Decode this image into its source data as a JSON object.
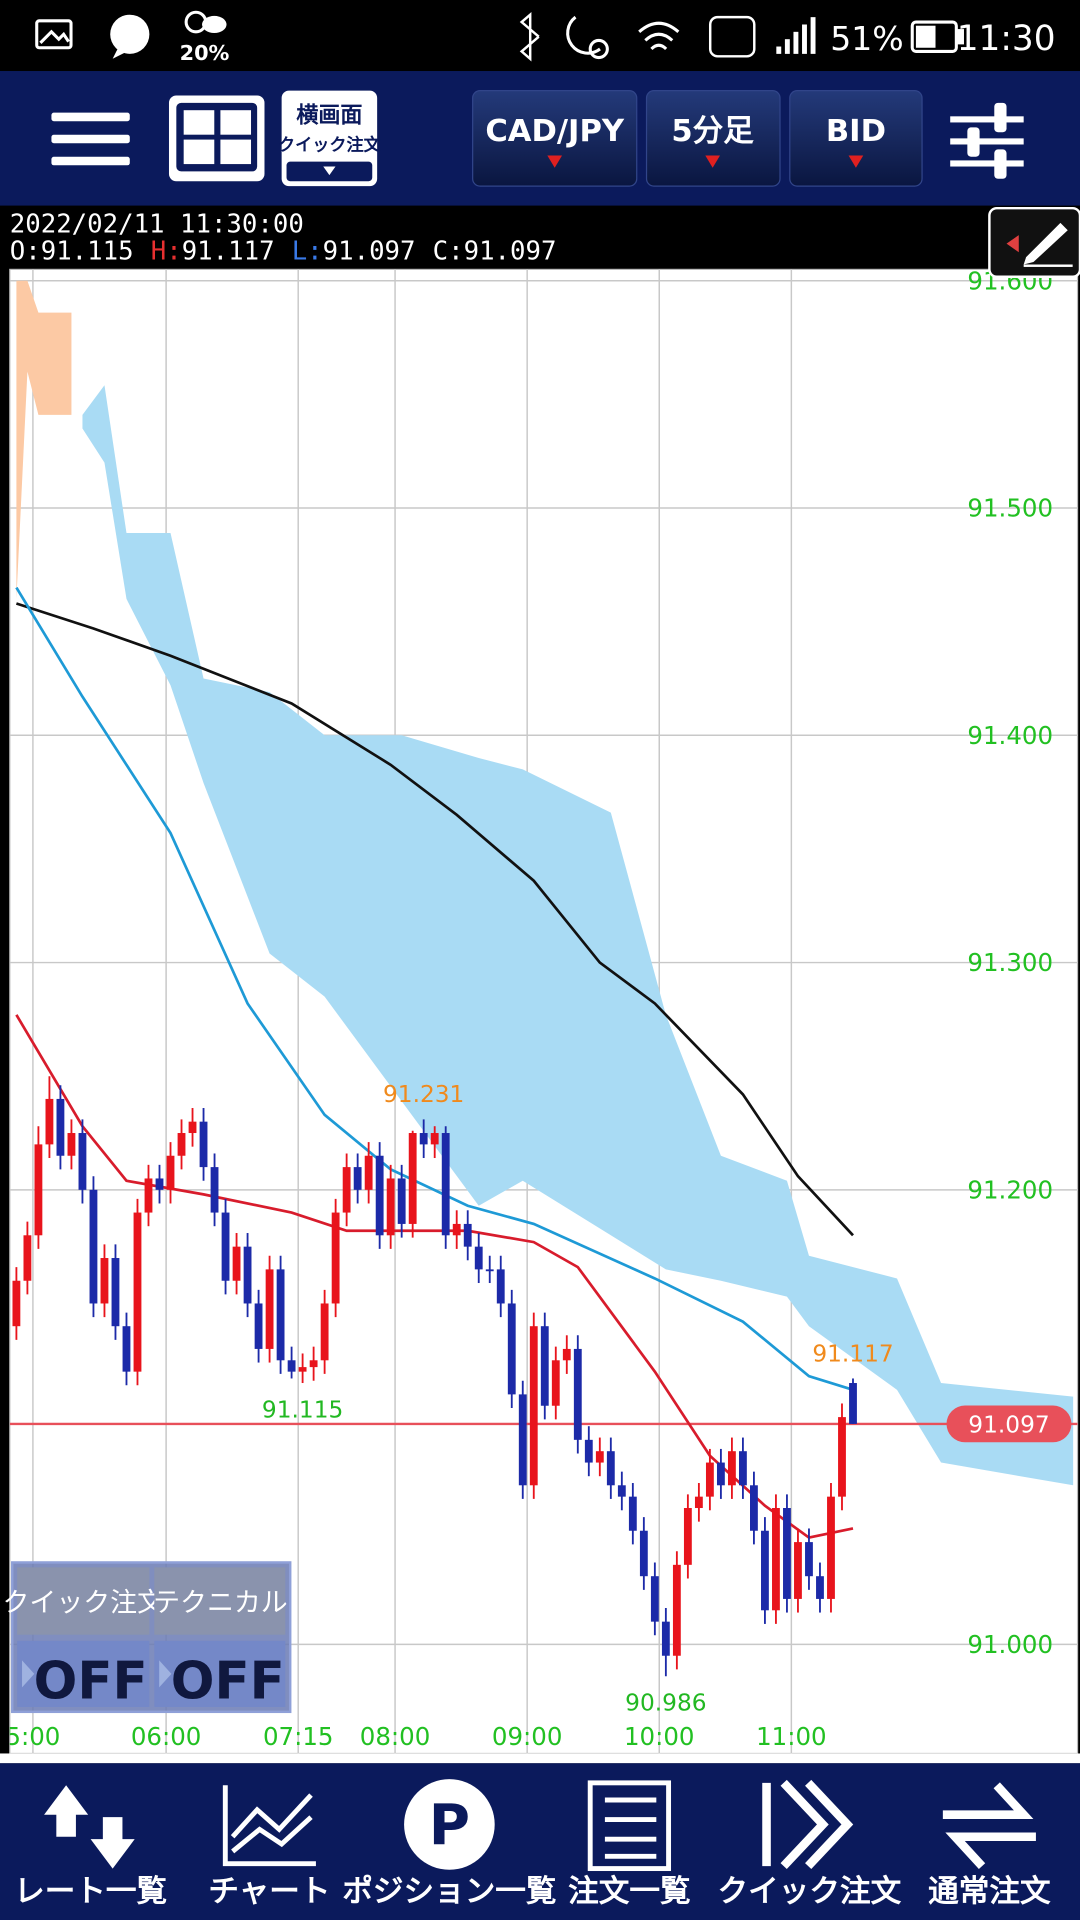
{
  "status_bar": {
    "weather": "20%",
    "battery": "51%",
    "time": "11:30"
  },
  "toolbar": {
    "landscape_line1": "横画面",
    "landscape_line2": "クイック注文",
    "pair": "CAD/JPY",
    "timeframe": "5分足",
    "price_type": "BID"
  },
  "info": {
    "datetime": "2022/02/11 11:30:00",
    "open_label": "O:",
    "open": "91.115",
    "high_label": "H:",
    "high": "91.117",
    "low_label": "L:",
    "low": "91.097",
    "close_label": "C:",
    "close": "91.097"
  },
  "chart": {
    "type": "candlestick",
    "up_color": "#e8141c",
    "down_color": "#1c2aa8",
    "xlim": [
      -0.6,
      96.4
    ],
    "xticks": [
      {
        "value": 1.5,
        "label": "5:00"
      },
      {
        "value": 13.6,
        "label": "06:00"
      },
      {
        "value": 25.6,
        "label": "07:15"
      },
      {
        "value": 34.4,
        "label": "08:00"
      },
      {
        "value": 46.4,
        "label": "09:00"
      },
      {
        "value": 58.4,
        "label": "10:00"
      },
      {
        "value": 70.4,
        "label": "11:00"
      }
    ],
    "ylim": [
      90.952,
      91.605
    ],
    "yticks": [
      {
        "value": 91.6,
        "label": "91.600"
      },
      {
        "value": 91.5,
        "label": "91.500"
      },
      {
        "value": 91.4,
        "label": "91.400"
      },
      {
        "value": 91.3,
        "label": "91.300"
      },
      {
        "value": 91.2,
        "label": "91.200"
      },
      {
        "value": 91.0,
        "label": "91.000"
      }
    ],
    "grid": true,
    "candles": [
      [
        91.14,
        91.166,
        91.134,
        91.16
      ],
      [
        91.16,
        91.186,
        91.154,
        91.18
      ],
      [
        91.18,
        91.228,
        91.174,
        91.22
      ],
      [
        91.22,
        91.25,
        91.214,
        91.24
      ],
      [
        91.24,
        91.246,
        91.209,
        91.215
      ],
      [
        91.215,
        91.231,
        91.209,
        91.225
      ],
      [
        91.225,
        91.231,
        91.194,
        91.2
      ],
      [
        91.2,
        91.206,
        91.144,
        91.15
      ],
      [
        91.15,
        91.176,
        91.144,
        91.17
      ],
      [
        91.17,
        91.176,
        91.134,
        91.14
      ],
      [
        91.14,
        91.146,
        91.114,
        91.12
      ],
      [
        91.12,
        91.196,
        91.114,
        91.19
      ],
      [
        91.19,
        91.211,
        91.184,
        91.205
      ],
      [
        91.205,
        91.211,
        91.194,
        91.2
      ],
      [
        91.2,
        91.221,
        91.194,
        91.215
      ],
      [
        91.215,
        91.231,
        91.209,
        91.225
      ],
      [
        91.225,
        91.236,
        91.219,
        91.23
      ],
      [
        91.23,
        91.236,
        91.204,
        91.21
      ],
      [
        91.21,
        91.216,
        91.184,
        91.19
      ],
      [
        91.19,
        91.196,
        91.154,
        91.16
      ],
      [
        91.16,
        91.181,
        91.154,
        91.175
      ],
      [
        91.175,
        91.181,
        91.144,
        91.15
      ],
      [
        91.15,
        91.156,
        91.124,
        91.13
      ],
      [
        91.13,
        91.171,
        91.124,
        91.165
      ],
      [
        91.165,
        91.171,
        91.119,
        91.125
      ],
      [
        91.125,
        91.131,
        91.117,
        91.12
      ],
      [
        91.12,
        91.128,
        91.115,
        91.122
      ],
      [
        91.122,
        91.131,
        91.116,
        91.125
      ],
      [
        91.125,
        91.156,
        91.119,
        91.15
      ],
      [
        91.15,
        91.196,
        91.144,
        91.19
      ],
      [
        91.19,
        91.216,
        91.184,
        91.21
      ],
      [
        91.21,
        91.216,
        91.194,
        91.2
      ],
      [
        91.2,
        91.221,
        91.194,
        91.215
      ],
      [
        91.215,
        91.221,
        91.174,
        91.18
      ],
      [
        91.18,
        91.211,
        91.174,
        91.205
      ],
      [
        91.205,
        91.211,
        91.179,
        91.185
      ],
      [
        91.185,
        91.226,
        91.179,
        91.225
      ],
      [
        91.225,
        91.231,
        91.214,
        91.22
      ],
      [
        91.22,
        91.228,
        91.214,
        91.225
      ],
      [
        91.225,
        91.228,
        91.174,
        91.18
      ],
      [
        91.18,
        91.191,
        91.174,
        91.185
      ],
      [
        91.185,
        91.191,
        91.169,
        91.175
      ],
      [
        91.175,
        91.181,
        91.159,
        91.165
      ],
      [
        91.165,
        91.171,
        91.159,
        91.165
      ],
      [
        91.165,
        91.171,
        91.144,
        91.15
      ],
      [
        91.15,
        91.156,
        91.104,
        91.11
      ],
      [
        91.11,
        91.116,
        91.064,
        91.07
      ],
      [
        91.07,
        91.146,
        91.064,
        91.14
      ],
      [
        91.14,
        91.146,
        91.099,
        91.105
      ],
      [
        91.105,
        91.131,
        91.099,
        91.125
      ],
      [
        91.125,
        91.136,
        91.119,
        91.13
      ],
      [
        91.13,
        91.136,
        91.084,
        91.09
      ],
      [
        91.09,
        91.096,
        91.074,
        91.08
      ],
      [
        91.08,
        91.091,
        91.074,
        91.085
      ],
      [
        91.085,
        91.091,
        91.064,
        91.07
      ],
      [
        91.07,
        91.076,
        91.059,
        91.065
      ],
      [
        91.065,
        91.071,
        91.044,
        91.05
      ],
      [
        91.05,
        91.056,
        91.024,
        91.03
      ],
      [
        91.03,
        91.036,
        91.004,
        91.01
      ],
      [
        91.01,
        91.016,
        90.986,
        90.995
      ],
      [
        90.995,
        91.041,
        90.989,
        91.035
      ],
      [
        91.035,
        91.066,
        91.029,
        91.06
      ],
      [
        91.06,
        91.071,
        91.054,
        91.065
      ],
      [
        91.065,
        91.086,
        91.059,
        91.08
      ],
      [
        91.08,
        91.086,
        91.064,
        91.07
      ],
      [
        91.07,
        91.091,
        91.064,
        91.085
      ],
      [
        91.085,
        91.091,
        91.064,
        91.07
      ],
      [
        91.07,
        91.076,
        91.044,
        91.05
      ],
      [
        91.05,
        91.056,
        91.009,
        91.015
      ],
      [
        91.015,
        91.066,
        91.009,
        91.06
      ],
      [
        91.06,
        91.066,
        91.014,
        91.02
      ],
      [
        91.02,
        91.051,
        91.014,
        91.045
      ],
      [
        91.045,
        91.051,
        91.024,
        91.03
      ],
      [
        91.03,
        91.036,
        91.014,
        91.02
      ],
      [
        91.02,
        91.071,
        91.014,
        91.065
      ],
      [
        91.065,
        91.106,
        91.059,
        91.1
      ],
      [
        91.115,
        91.117,
        91.097,
        91.097
      ]
    ],
    "clouds": [
      {
        "color": "#fcc9a4",
        "x": [
          0,
          1,
          2,
          4,
          5
        ],
        "upper": [
          91.6,
          91.6,
          91.586,
          91.586,
          91.586
        ],
        "lower": [
          91.46,
          91.56,
          91.541,
          91.541,
          91.541
        ]
      },
      {
        "color": "#a9dbf4",
        "x": [
          6,
          8,
          10,
          14,
          17,
          23,
          28,
          35,
          42,
          46,
          54,
          59,
          64,
          70,
          72,
          80,
          84,
          96
        ],
        "upper": [
          91.541,
          91.554,
          91.489,
          91.489,
          91.425,
          91.419,
          91.4,
          91.4,
          91.39,
          91.385,
          91.366,
          91.277,
          91.215,
          91.204,
          91.171,
          91.161,
          91.115,
          91.109
        ],
        "lower": [
          91.535,
          91.52,
          91.46,
          91.422,
          91.379,
          91.304,
          91.285,
          91.239,
          91.193,
          91.204,
          91.18,
          91.165,
          91.16,
          91.153,
          91.14,
          91.112,
          91.08,
          91.07
        ]
      }
    ],
    "lines": [
      {
        "color": "#111111",
        "x": [
          0,
          7,
          14,
          25,
          34,
          40,
          47,
          53,
          58,
          66,
          71,
          76
        ],
        "values": [
          91.458,
          91.447,
          91.435,
          91.414,
          91.387,
          91.365,
          91.336,
          91.3,
          91.282,
          91.242,
          91.206,
          91.18
        ]
      },
      {
        "color": "#1e9ad6",
        "x": [
          0,
          6,
          14,
          21,
          28,
          34,
          41,
          47,
          58,
          66,
          72,
          76
        ],
        "values": [
          91.465,
          91.417,
          91.357,
          91.282,
          91.233,
          91.209,
          91.193,
          91.185,
          91.161,
          91.142,
          91.118,
          91.112
        ]
      },
      {
        "color": "#d81c2c",
        "x": [
          0,
          6,
          10,
          17,
          25,
          30,
          41,
          47,
          51,
          58,
          63,
          68,
          72,
          76
        ],
        "values": [
          91.277,
          91.228,
          91.204,
          91.198,
          91.19,
          91.182,
          91.182,
          91.177,
          91.166,
          91.12,
          91.083,
          91.061,
          91.047,
          91.051
        ]
      }
    ],
    "annotations": [
      {
        "x": 37,
        "value": 91.231,
        "position": "above",
        "color": "#f08a1c"
      },
      {
        "x": 26,
        "value": 91.115,
        "position": "below",
        "color": "#22b822"
      },
      {
        "x": 59,
        "value": 90.986,
        "position": "below",
        "color": "#22b822"
      },
      {
        "x": 76,
        "value": 91.117,
        "position": "above",
        "color": "#f08a1c"
      }
    ],
    "current_price": {
      "value": 91.097,
      "color": "#e8505a"
    },
    "axis_color": "#22c022"
  },
  "overlay": {
    "quick_label": "クイック注文",
    "quick_state": "OFF",
    "tech_label": "テクニカル",
    "tech_state": "OFF"
  },
  "bottom_nav": [
    "レート一覧",
    "チャート",
    "ポジション一覧",
    "注文一覧",
    "クイック注文",
    "通常注文"
  ]
}
